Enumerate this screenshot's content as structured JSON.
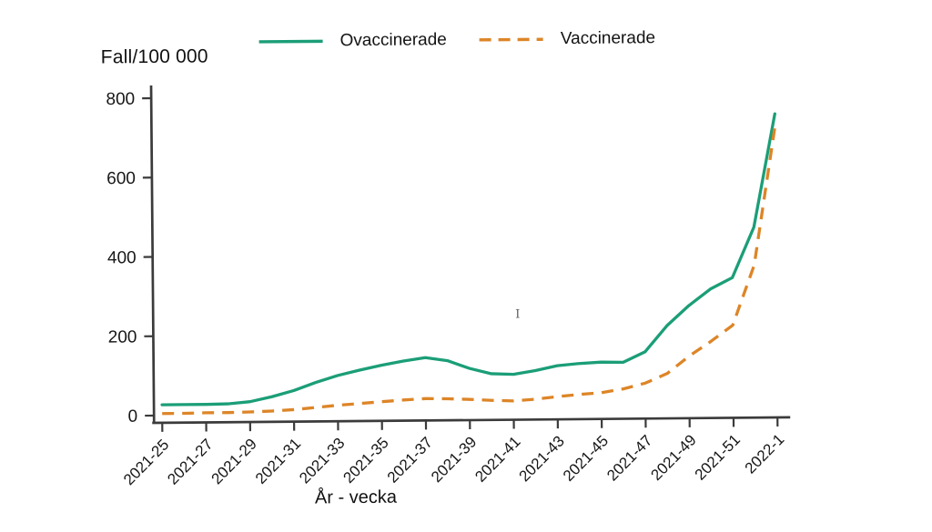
{
  "chart_data": {
    "type": "line",
    "y_axis_title": "Fall/100 000",
    "x_axis_title": "År - vecka",
    "ylim": [
      0,
      800
    ],
    "y_ticks": [
      0,
      200,
      400,
      600,
      800
    ],
    "grid": false,
    "legend_position": "top",
    "x_tick_labels": [
      "2021-25",
      "2021-27",
      "2021-29",
      "2021-31",
      "2021-33",
      "2021-35",
      "2021-37",
      "2021-39",
      "2021-41",
      "2021-43",
      "2021-45",
      "2021-47",
      "2021-49",
      "2021-51",
      "2022-1"
    ],
    "categories": [
      "2021-25",
      "2021-26",
      "2021-27",
      "2021-28",
      "2021-29",
      "2021-30",
      "2021-31",
      "2021-32",
      "2021-33",
      "2021-34",
      "2021-35",
      "2021-36",
      "2021-37",
      "2021-38",
      "2021-39",
      "2021-40",
      "2021-41",
      "2021-42",
      "2021-43",
      "2021-44",
      "2021-45",
      "2021-46",
      "2021-47",
      "2021-48",
      "2021-49",
      "2021-50",
      "2021-51",
      "2021-52",
      "2022-1"
    ],
    "series": [
      {
        "name": "Ovaccinerade",
        "style": "solid",
        "color": "#1b9e77",
        "values": [
          27,
          27,
          27,
          28,
          33,
          45,
          60,
          80,
          97,
          110,
          122,
          132,
          140,
          132,
          112,
          98,
          96,
          105,
          117,
          122,
          125,
          124,
          150,
          215,
          265,
          307,
          335,
          462,
          747
        ]
      },
      {
        "name": "Vaccinerade",
        "style": "dashed",
        "color": "#dd8527",
        "values": [
          5,
          5,
          6,
          6,
          7,
          9,
          12,
          17,
          22,
          26,
          30,
          34,
          37,
          36,
          34,
          31,
          29,
          33,
          39,
          44,
          48,
          57,
          71,
          95,
          138,
          175,
          215,
          366,
          715
        ]
      }
    ]
  },
  "artifacts": {
    "cursor_glyph": "I"
  }
}
